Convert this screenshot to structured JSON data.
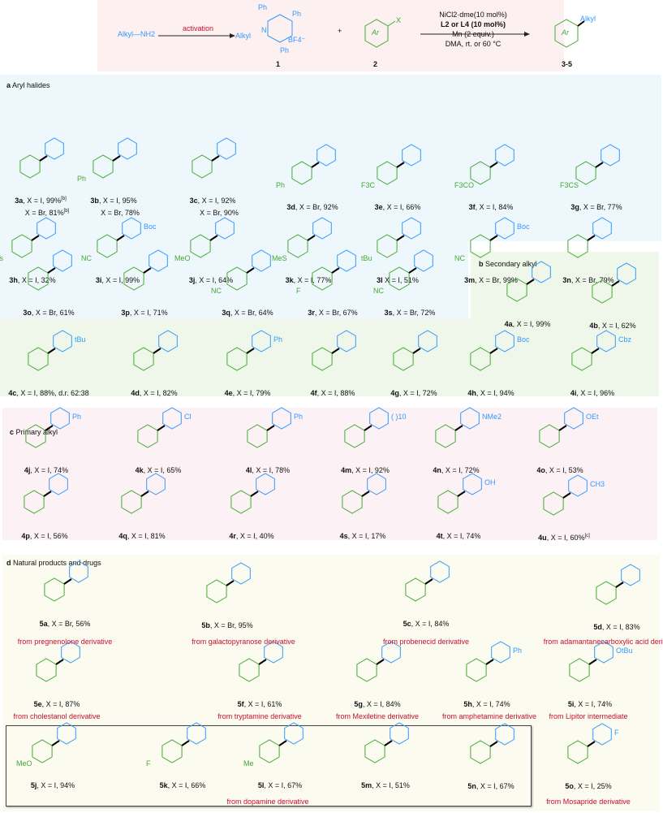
{
  "scheme": {
    "reactant": "Alkyl—NH2",
    "activation": "activation",
    "pyridinium": {
      "substituents": [
        "Ph",
        "Ph",
        "Ph"
      ],
      "n_label": "N",
      "alkyl": "Alkyl",
      "counterion": "BF4⁻",
      "number": "1"
    },
    "plus": "+",
    "aryl_halide": {
      "ring": "Ar",
      "x": "X",
      "number": "2"
    },
    "conditions": [
      "NiCl2·dme(10 mol%)",
      "L2 or L4 (10 mol%)",
      "Mn (2 equiv.)",
      "DMA, rt. or 60 °C"
    ],
    "product": {
      "ring": "Ar",
      "alkyl": "Alkyl",
      "number": "3-5"
    }
  },
  "sections": {
    "a": {
      "letter": "a",
      "title": "Aryl halides"
    },
    "b": {
      "letter": "b",
      "title": "Secondary alkyl"
    },
    "c": {
      "letter": "c",
      "title": "Primary alkyl"
    },
    "d": {
      "letter": "d",
      "title": "Natural products and drugs"
    }
  },
  "colors": {
    "aryl": "#44aa33",
    "alkyl": "#3399ff",
    "new_bond": "#000000",
    "source_label": "#c8102e",
    "box_a": "#eef7fb",
    "box_b": "#eef7ea",
    "box_c": "#fcf1f4",
    "box_d": "#fbfbf0",
    "box_scheme": "#fcf0f0"
  },
  "compounds": [
    {
      "id": "3a",
      "text": ", X = I, 99%",
      "sup": "[b]",
      "extra": "X = Br, 81%",
      "extra_sup": "[b]"
    },
    {
      "id": "3b",
      "text": ", X = I, 95%",
      "extra": "X = Br, 78%"
    },
    {
      "id": "3c",
      "text": ", X = I, 92%",
      "extra": "X = Br, 90%"
    },
    {
      "id": "3d",
      "text": ", X = Br, 92%"
    },
    {
      "id": "3e",
      "text": ", X = I, 66%"
    },
    {
      "id": "3f",
      "text": ", X = I, 84%"
    },
    {
      "id": "3g",
      "text": ", X = Br, 77%"
    },
    {
      "id": "3h",
      "text": ", X = I, 32%"
    },
    {
      "id": "3i",
      "text": ", X = I, 99%"
    },
    {
      "id": "3j",
      "text": ", X = I, 64%"
    },
    {
      "id": "3k",
      "text": ", X = I, 77%"
    },
    {
      "id": "3l",
      "text": " X = I, 51%"
    },
    {
      "id": "3m",
      "text": ", X = Br, 99%"
    },
    {
      "id": "3n",
      "text": ", X = Br, 79%"
    },
    {
      "id": "3o",
      "text": ", X = Br, 61%"
    },
    {
      "id": "3p",
      "text": ", X = I, 71%"
    },
    {
      "id": "3q",
      "text": ", X = Br, 64%"
    },
    {
      "id": "3r",
      "text": ", X = Br, 67%"
    },
    {
      "id": "3s",
      "text": ", X = Br, 72%"
    },
    {
      "id": "4a",
      "text": ", X = I, 99%"
    },
    {
      "id": "4b",
      "text": ", X = I, 62%"
    },
    {
      "id": "4c",
      "text": ", X = I, 88%, d.r. 62:38"
    },
    {
      "id": "4d",
      "text": ", X = I, 82%"
    },
    {
      "id": "4e",
      "text": ", X = I, 79%"
    },
    {
      "id": "4f",
      "text": ", X = I, 88%"
    },
    {
      "id": "4g",
      "text": ", X = I, 72%"
    },
    {
      "id": "4h",
      "text": ", X = I, 94%"
    },
    {
      "id": "4i",
      "text": ", X = I, 96%"
    },
    {
      "id": "4j",
      "text": ", X = I, 74%"
    },
    {
      "id": "4k",
      "text": ", X = I, 65%"
    },
    {
      "id": "4l",
      "text": ", X = I, 78%"
    },
    {
      "id": "4m",
      "text": ", X = I, 92%"
    },
    {
      "id": "4n",
      "text": ", X = I, 72%"
    },
    {
      "id": "4o",
      "text": ", X = I, 53%"
    },
    {
      "id": "4p",
      "text": ", X = I, 56%"
    },
    {
      "id": "4q",
      "text": ", X = I, 81%"
    },
    {
      "id": "4r",
      "text": ", X = I, 40%"
    },
    {
      "id": "4s",
      "text": ", X = I, 17%"
    },
    {
      "id": "4t",
      "text": ", X = I, 74%"
    },
    {
      "id": "4u",
      "text": ", X = I, 60%",
      "sup": "[c]"
    },
    {
      "id": "5a",
      "text": ", X = Br, 56%"
    },
    {
      "id": "5b",
      "text": ", X = Br, 95%"
    },
    {
      "id": "5c",
      "text": ", X = I, 84%"
    },
    {
      "id": "5d",
      "text": ", X = I, 83%"
    },
    {
      "id": "5e",
      "text": ", X = I, 87%"
    },
    {
      "id": "5f",
      "text": ", X = I, 61%"
    },
    {
      "id": "5g",
      "text": ", X = I, 84%"
    },
    {
      "id": "5h",
      "text": ", X = I, 74%"
    },
    {
      "id": "5i",
      "text": ", X = I, 74%"
    },
    {
      "id": "5j",
      "text": ", X = I, 94%"
    },
    {
      "id": "5k",
      "text": ", X = I, 66%"
    },
    {
      "id": "5l",
      "text": ", X = I, 67%"
    },
    {
      "id": "5m",
      "text": ", X = I, 51%"
    },
    {
      "id": "5n",
      "text": ", X = I, 67%"
    },
    {
      "id": "5o",
      "text": ", X = I, 25%"
    }
  ],
  "substituent_labels": {
    "3b": "Ph",
    "3d": "Ph",
    "3e": "F3C",
    "3f": "F3CO",
    "3g": "F3CS",
    "3h": "Ts",
    "3i": "NC",
    "3j": "MeO",
    "3k": "MeS",
    "3l": "tBu",
    "3m": "NC",
    "3q": "NC",
    "3r": "F",
    "3s": "NC",
    "3i_alkyl": "Boc",
    "3m_alkyl": "Boc",
    "4c_alkyl": "tBu",
    "4e_alkyl": "Ph",
    "4h_alkyl": "Boc",
    "4i_alkyl": "Cbz",
    "4j_alkyl": "Ph",
    "4k_alkyl": "Cl",
    "4l_alkyl": "Ph",
    "4m_alkyl": "( )10",
    "4n_alkyl": "NMe2",
    "4o_alkyl": "OEt",
    "4t_alkyl": "OH",
    "4u_alkyl": "CH3",
    "5h_alkyl": "Ph",
    "5i_alkyl": "OtBu",
    "5j": "MeO",
    "5k": "F",
    "5l": "Me",
    "5o_alkyl": "F"
  },
  "sources": [
    {
      "id": "5a",
      "text": "from pregnenolone derivative"
    },
    {
      "id": "5b",
      "text": "from galactopyranose derivative"
    },
    {
      "id": "5c",
      "text": "from probenecid derivative"
    },
    {
      "id": "5d",
      "text": "from adamantanecarboxylic acid derivative"
    },
    {
      "id": "5e",
      "text": "from cholestanol derivative"
    },
    {
      "id": "5f",
      "text": "from tryptamine derivative"
    },
    {
      "id": "5g",
      "text": "from Mexiletine derivative"
    },
    {
      "id": "5h",
      "text": "from amphetamine derivative"
    },
    {
      "id": "5i",
      "text": "from Lipitor intermediate"
    },
    {
      "id": "5j-5n",
      "text": "from dopamine derivative"
    },
    {
      "id": "5o",
      "text": "from Mosapride derivative"
    }
  ]
}
